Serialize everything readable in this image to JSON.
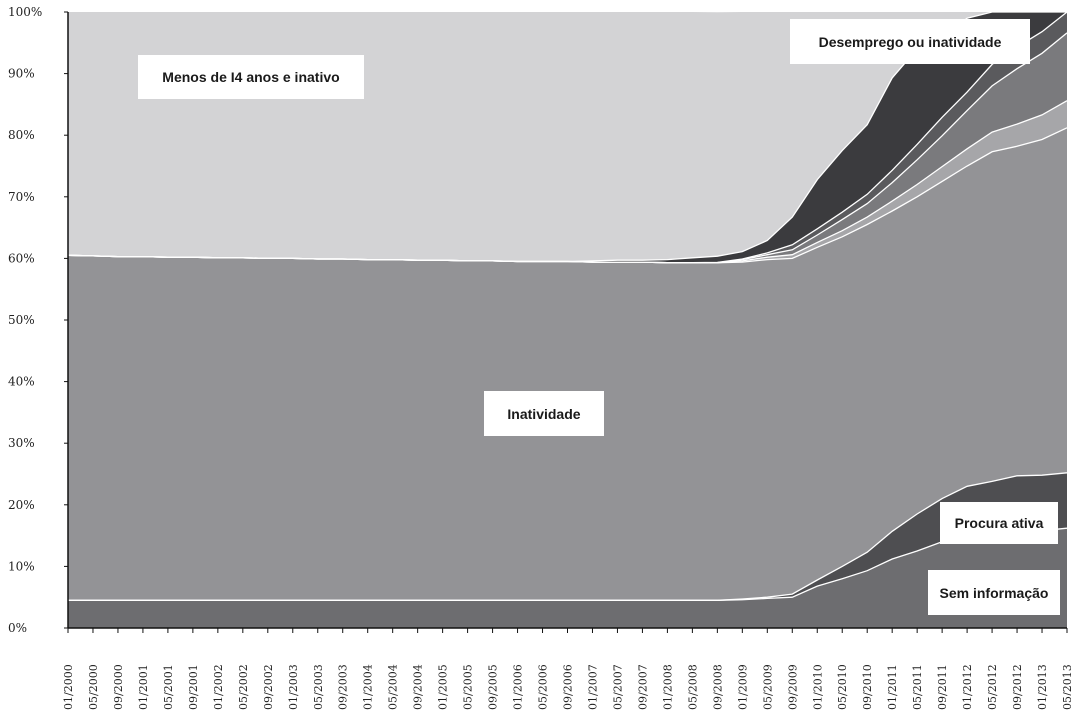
{
  "chart_data": {
    "type": "area",
    "stacked": true,
    "percent": true,
    "title": "",
    "xlabel": "",
    "ylabel": "",
    "ylim": [
      0,
      100
    ],
    "yticks": [
      0,
      10,
      20,
      30,
      40,
      50,
      60,
      70,
      80,
      90,
      100
    ],
    "ytick_labels": [
      "0%",
      "10%",
      "20%",
      "30%",
      "40%",
      "50%",
      "60%",
      "70%",
      "80%",
      "90%",
      "100%"
    ],
    "x": [
      "01/2000",
      "05/2000",
      "09/2000",
      "01/2001",
      "05/2001",
      "09/2001",
      "01/2002",
      "05/2002",
      "09/2002",
      "01/2003",
      "05/2003",
      "09/2003",
      "01/2004",
      "05/2004",
      "09/2004",
      "01/2005",
      "05/2005",
      "09/2005",
      "01/2006",
      "05/2006",
      "09/2006",
      "01/2007",
      "05/2007",
      "09/2007",
      "01/2008",
      "05/2008",
      "09/2008",
      "01/2009",
      "05/2009",
      "09/2009",
      "01/2010",
      "05/2010",
      "09/2010",
      "01/2011",
      "05/2011",
      "09/2011",
      "01/2012",
      "05/2012",
      "09/2012",
      "01/2013",
      "05/2013"
    ],
    "grid": false,
    "legend": "none",
    "series": [
      {
        "name": "Sem informação",
        "color": "#6d6d70",
        "values": [
          4.5,
          4.5,
          4.5,
          4.5,
          4.5,
          4.5,
          4.5,
          4.5,
          4.5,
          4.5,
          4.5,
          4.5,
          4.5,
          4.5,
          4.5,
          4.5,
          4.5,
          4.5,
          4.5,
          4.5,
          4.5,
          4.5,
          4.5,
          4.5,
          4.5,
          4.5,
          4.5,
          4.6,
          4.8,
          5.0,
          6.8,
          8.0,
          9.3,
          11.2,
          12.5,
          14.0,
          15.0,
          15.8,
          15.7,
          15.8,
          16.2
        ]
      },
      {
        "name": "Procura ativa",
        "color": "#4e4e51",
        "values": [
          0,
          0,
          0,
          0,
          0,
          0,
          0,
          0,
          0,
          0,
          0,
          0,
          0,
          0,
          0,
          0,
          0,
          0,
          0,
          0,
          0,
          0,
          0,
          0,
          0,
          0,
          0,
          0.1,
          0.2,
          0.5,
          1.0,
          2.0,
          3.0,
          4.5,
          6.0,
          7.0,
          8.0,
          8.0,
          9.0,
          9.0,
          9.0
        ]
      },
      {
        "name": "Inatividade",
        "color": "#939396",
        "values": [
          56.0,
          55.9,
          55.8,
          55.8,
          55.7,
          55.7,
          55.6,
          55.6,
          55.5,
          55.5,
          55.4,
          55.4,
          55.3,
          55.3,
          55.2,
          55.2,
          55.1,
          55.1,
          55.0,
          55.0,
          55.0,
          54.9,
          54.9,
          54.9,
          54.8,
          54.8,
          54.8,
          54.7,
          54.8,
          54.5,
          54.0,
          53.5,
          53.2,
          52.0,
          51.5,
          51.5,
          52.0,
          53.5,
          53.5,
          54.5,
          56.0
        ]
      },
      {
        "name": "",
        "color": "#a6a6a9",
        "values": [
          0,
          0,
          0,
          0,
          0,
          0,
          0,
          0,
          0,
          0,
          0,
          0,
          0,
          0,
          0,
          0,
          0,
          0,
          0,
          0,
          0,
          0,
          0,
          0,
          0,
          0,
          0,
          0.2,
          0.4,
          0.6,
          0.8,
          1.0,
          1.2,
          1.6,
          2.0,
          2.4,
          2.8,
          3.2,
          3.6,
          4.0,
          4.4
        ]
      },
      {
        "name": "",
        "color": "#7a7a7d",
        "values": [
          0,
          0,
          0,
          0,
          0,
          0,
          0,
          0,
          0,
          0,
          0,
          0,
          0,
          0,
          0,
          0,
          0,
          0,
          0,
          0,
          0,
          0,
          0,
          0,
          0,
          0,
          0,
          0.2,
          0.4,
          0.8,
          1.2,
          1.8,
          2.2,
          3.0,
          4.0,
          5.0,
          6.2,
          7.5,
          9.0,
          10.0,
          11.0
        ]
      },
      {
        "name": "",
        "color": "#5a5a5d",
        "values": [
          0,
          0,
          0,
          0,
          0,
          0,
          0,
          0,
          0,
          0,
          0,
          0,
          0,
          0,
          0,
          0,
          0,
          0,
          0,
          0,
          0,
          0,
          0,
          0,
          0,
          0,
          0.05,
          0.1,
          0.3,
          0.8,
          1.0,
          1.2,
          1.5,
          2.0,
          2.5,
          3.0,
          3.0,
          3.5,
          3.5,
          3.5,
          3.5
        ]
      },
      {
        "name": "Desemprego ou inatividade",
        "color": "#3b3b3e",
        "values": [
          0,
          0,
          0,
          0,
          0,
          0,
          0,
          0,
          0,
          0,
          0,
          0,
          0,
          0,
          0,
          0,
          0,
          0,
          0,
          0,
          0,
          0.2,
          0.3,
          0.3,
          0.5,
          0.8,
          1.0,
          1.2,
          2.0,
          4.5,
          8.0,
          10.0,
          11.3,
          15.0,
          15.5,
          13.0,
          12.0,
          12.5,
          9.7,
          3.2,
          0
        ]
      },
      {
        "name": "Menos de 14 anos e inativo",
        "color": "#d3d3d5",
        "values": [
          39.5,
          39.6,
          39.7,
          39.7,
          39.8,
          39.8,
          39.9,
          39.9,
          40.0,
          40.0,
          40.1,
          40.1,
          40.2,
          40.2,
          40.3,
          40.3,
          40.4,
          40.4,
          40.5,
          40.5,
          40.5,
          40.4,
          40.3,
          40.3,
          40.2,
          39.9,
          39.6,
          39.0,
          37.1,
          33.3,
          27.2,
          22.5,
          18.3,
          10.7,
          8.0,
          6.1,
          1.0,
          0,
          0,
          0,
          0
        ]
      }
    ],
    "annotations": [
      {
        "text": "Menos de I4 anos e inativo"
      },
      {
        "text": "Desemprego ou inatividade"
      },
      {
        "text": "Inatividade"
      },
      {
        "text": "Procura ativa"
      },
      {
        "text": "Sem informação"
      }
    ]
  }
}
